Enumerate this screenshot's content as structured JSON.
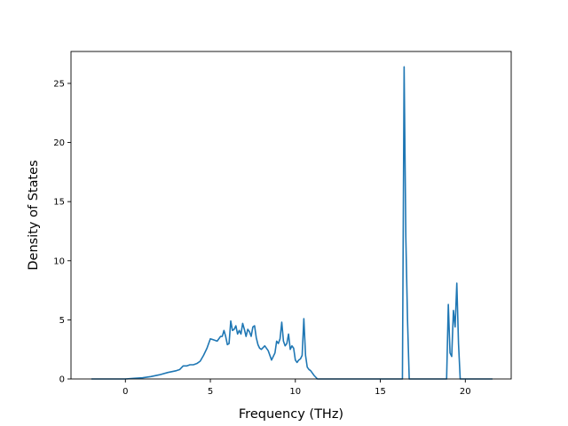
{
  "chart_data": {
    "type": "line",
    "title": "",
    "xlabel": "Frequency (THz)",
    "ylabel": "Density of States",
    "xlim": [
      -3.2,
      22.7
    ],
    "ylim": [
      0,
      27.7
    ],
    "xticks": [
      0,
      5,
      10,
      15,
      20
    ],
    "yticks": [
      0,
      5,
      10,
      15,
      20,
      25
    ],
    "grid": false,
    "line_color": "#1f77b4",
    "series": [
      {
        "x": [
          -2.0,
          -1.0,
          0.0,
          0.5,
          1.0,
          1.5,
          2.0,
          2.5,
          3.0,
          3.2,
          3.4,
          3.6,
          3.8,
          4.0,
          4.2,
          4.4,
          4.6,
          4.8,
          5.0,
          5.2,
          5.4,
          5.6,
          5.7,
          5.8,
          5.9,
          6.0,
          6.1,
          6.2,
          6.3,
          6.4,
          6.5,
          6.6,
          6.7,
          6.8,
          6.9,
          7.0,
          7.1,
          7.2,
          7.3,
          7.4,
          7.5,
          7.6,
          7.7,
          7.8,
          7.9,
          8.0,
          8.2,
          8.4,
          8.6,
          8.8,
          8.9,
          9.0,
          9.1,
          9.2,
          9.3,
          9.4,
          9.5,
          9.6,
          9.7,
          9.8,
          9.9,
          10.0,
          10.1,
          10.2,
          10.3,
          10.4,
          10.5,
          10.6,
          10.7,
          10.8,
          10.9,
          11.0,
          11.1,
          11.3,
          11.5,
          11.7,
          12.0,
          13.0,
          14.0,
          15.0,
          16.0,
          16.2,
          16.3,
          16.4,
          16.5,
          16.6,
          16.7,
          16.8,
          17.0,
          18.0,
          18.9,
          19.0,
          19.1,
          19.2,
          19.3,
          19.4,
          19.5,
          19.6,
          19.7,
          19.8,
          20.5,
          21.6
        ],
        "y": [
          0,
          0,
          0,
          0.05,
          0.1,
          0.2,
          0.35,
          0.55,
          0.7,
          0.8,
          1.1,
          1.1,
          1.2,
          1.2,
          1.3,
          1.5,
          2.0,
          2.6,
          3.4,
          3.3,
          3.2,
          3.6,
          3.6,
          4.1,
          3.6,
          2.9,
          3.0,
          4.9,
          4.1,
          4.2,
          4.5,
          3.8,
          4.1,
          3.8,
          4.7,
          4.2,
          3.6,
          4.2,
          4.0,
          3.6,
          4.4,
          4.5,
          3.5,
          2.9,
          2.6,
          2.5,
          2.8,
          2.4,
          1.6,
          2.2,
          3.2,
          3.0,
          3.4,
          4.8,
          3.2,
          2.8,
          3.0,
          3.8,
          2.5,
          2.8,
          2.6,
          1.6,
          1.4,
          1.6,
          1.7,
          2.0,
          5.1,
          2.0,
          1.0,
          0.8,
          0.7,
          0.5,
          0.3,
          0,
          0,
          0,
          0,
          0,
          0,
          0,
          0,
          0,
          0,
          26.4,
          12.0,
          5.0,
          0,
          0,
          0,
          0,
          0,
          6.3,
          2.2,
          1.9,
          5.8,
          4.4,
          8.1,
          3.0,
          0,
          0,
          0,
          0
        ]
      }
    ]
  }
}
